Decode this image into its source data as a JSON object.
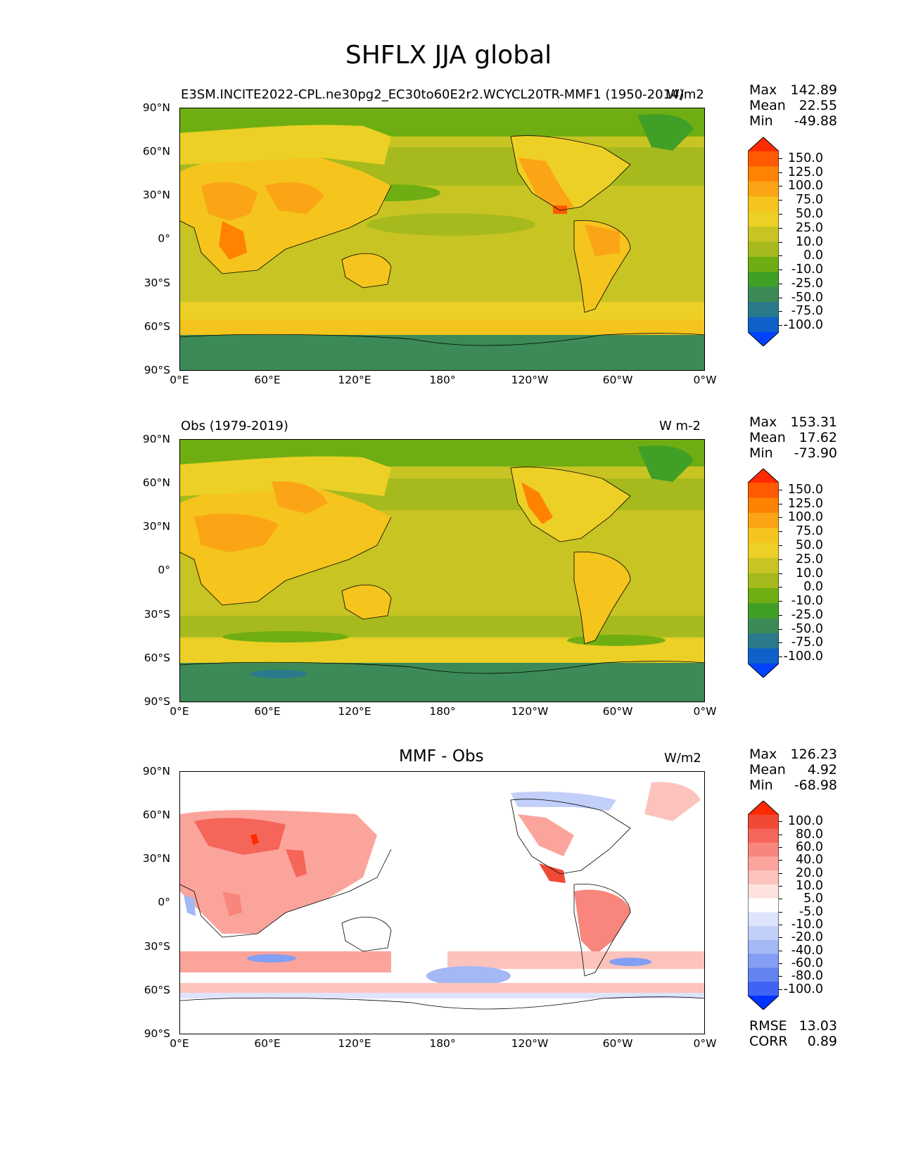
{
  "title": "SHFLX JJA global",
  "axes": {
    "lat_labels": [
      "90°N",
      "60°N",
      "30°N",
      "0°",
      "30°S",
      "60°S",
      "90°S"
    ],
    "lon_labels": [
      "0°E",
      "60°E",
      "120°E",
      "180°",
      "120°W",
      "60°W",
      "0°W"
    ]
  },
  "panels": [
    {
      "left_title": "E3SM.INCITE2022-CPL.ne30pg2_EC30to60E2r2.WCYCL20TR-MMF1 (1950-2014)",
      "center_title": "",
      "units": "W/m2",
      "stats": {
        "max_label": "Max",
        "max": "142.89",
        "mean_label": "Mean",
        "mean": "22.55",
        "min_label": "Min",
        "min": "-49.88"
      },
      "colorbar": {
        "levels": [
          "150.0",
          "125.0",
          "100.0",
          "75.0",
          "50.0",
          "25.0",
          "10.0",
          "0.0",
          "-10.0",
          "-25.0",
          "-50.0",
          "-75.0",
          "-100.0"
        ],
        "colors": [
          "#ff2a00",
          "#ff5a00",
          "#ff8200",
          "#fba516",
          "#f5c41d",
          "#ecd025",
          "#c7c423",
          "#a6ba1d",
          "#6fae12",
          "#3f9f26",
          "#3c8a57",
          "#2a7a8c",
          "#0f60c8",
          "#0042ff"
        ]
      }
    },
    {
      "left_title": "Obs (1979-2019)",
      "center_title": "",
      "units": "W m-2",
      "stats": {
        "max_label": "Max",
        "max": "153.31",
        "mean_label": "Mean",
        "mean": "17.62",
        "min_label": "Min",
        "min": "-73.90"
      },
      "colorbar": {
        "levels": [
          "150.0",
          "125.0",
          "100.0",
          "75.0",
          "50.0",
          "25.0",
          "10.0",
          "0.0",
          "-10.0",
          "-25.0",
          "-50.0",
          "-75.0",
          "-100.0"
        ],
        "colors": [
          "#ff2a00",
          "#ff5a00",
          "#ff8200",
          "#fba516",
          "#f5c41d",
          "#ecd025",
          "#c7c423",
          "#a6ba1d",
          "#6fae12",
          "#3f9f26",
          "#3c8a57",
          "#2a7a8c",
          "#0f60c8",
          "#0042ff"
        ]
      }
    },
    {
      "left_title": "",
      "center_title": "MMF - Obs",
      "units": "W/m2",
      "stats": {
        "max_label": "Max",
        "max": "126.23",
        "mean_label": "Mean",
        "mean": "4.92",
        "min_label": "Min",
        "min": "-68.98"
      },
      "colorbar": {
        "levels": [
          "100.0",
          "80.0",
          "60.0",
          "40.0",
          "20.0",
          "10.0",
          "5.0",
          "-5.0",
          "-10.0",
          "-20.0",
          "-40.0",
          "-60.0",
          "-80.0",
          "-100.0"
        ],
        "colors": [
          "#ff2a00",
          "#f04a36",
          "#f5655a",
          "#f8867c",
          "#fba49c",
          "#fcc3bd",
          "#fde2de",
          "#ffffff",
          "#dde4fb",
          "#c2cff8",
          "#a3b8f5",
          "#839ef2",
          "#6384f0",
          "#3f63f3",
          "#0033ff"
        ]
      }
    }
  ],
  "diff_metrics": {
    "rmse_label": "RMSE",
    "rmse": "13.03",
    "corr_label": "CORR",
    "corr": "0.89"
  }
}
